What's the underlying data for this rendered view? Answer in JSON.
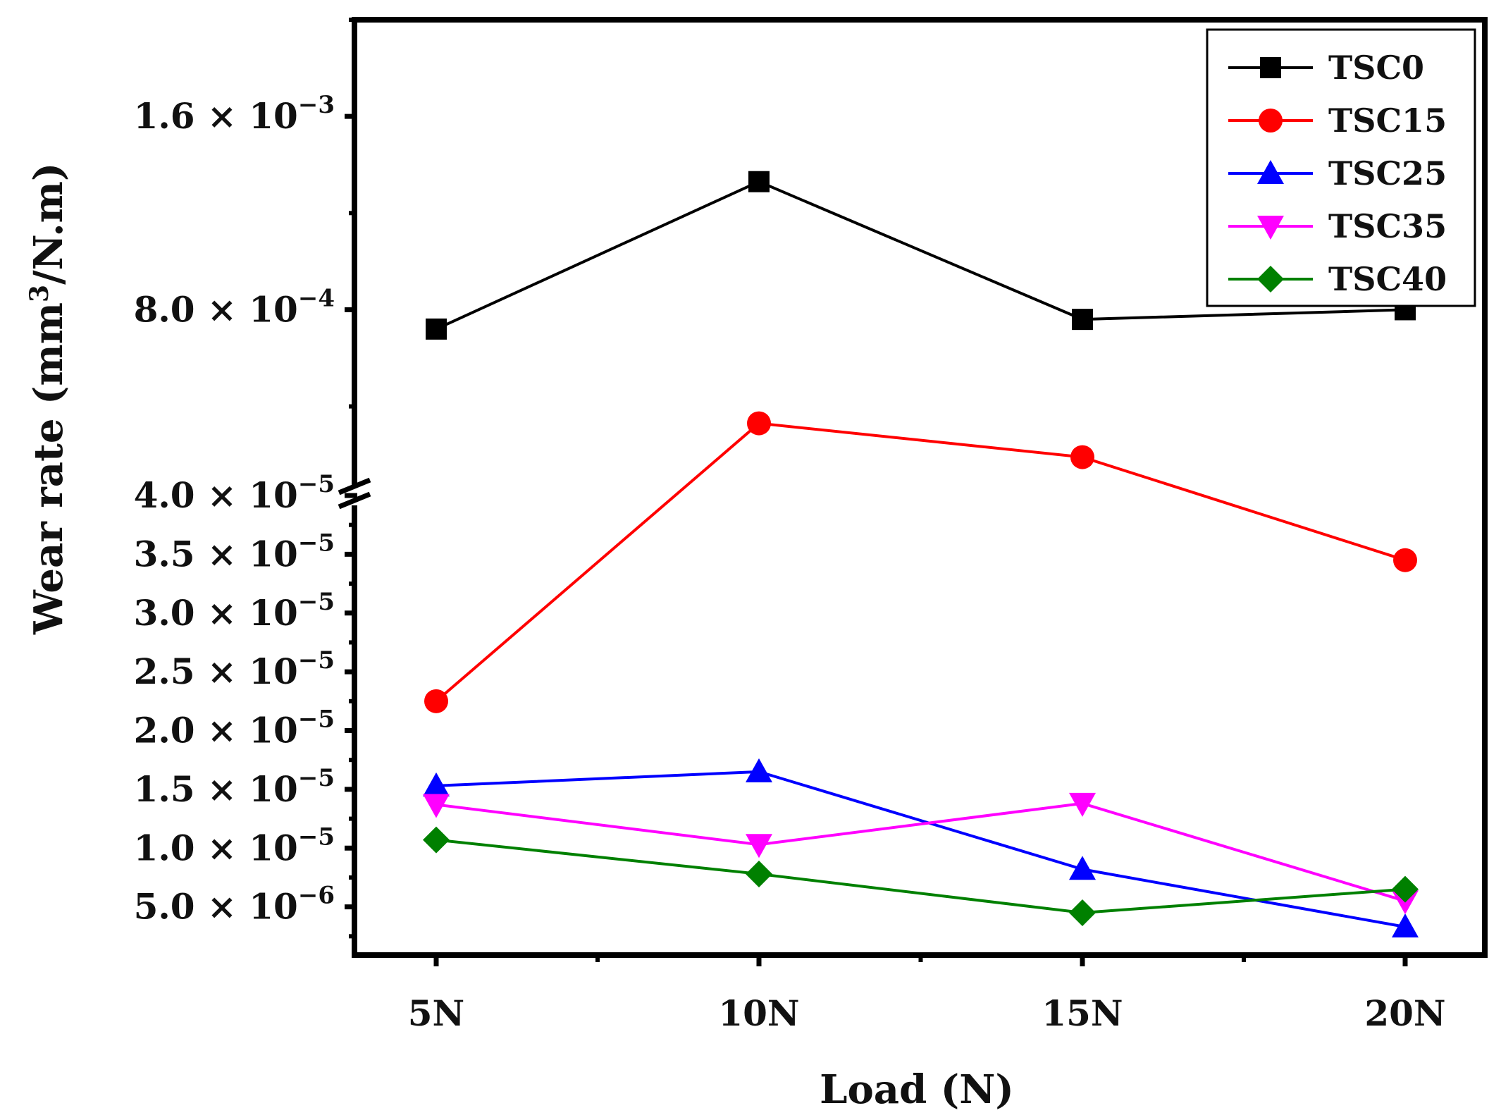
{
  "chart_data": {
    "type": "line",
    "title": "",
    "xlabel": "Load (N)",
    "ylabel_main": "Wear rate (mm",
    "ylabel_sup": "3",
    "ylabel_tail": "/N.m)",
    "categories": [
      "5N",
      "10N",
      "15N",
      "20N"
    ],
    "y_break": true,
    "y_lower_range": [
      1.5e-06,
      4e-05
    ],
    "y_upper_range": [
      4e-05,
      0.002
    ],
    "y_lower_ticks": [
      {
        "value": 5e-06,
        "mantissa": "5.0",
        "exp": "−6"
      },
      {
        "value": 1e-05,
        "mantissa": "1.0",
        "exp": "−5"
      },
      {
        "value": 1.5e-05,
        "mantissa": "1.5",
        "exp": "−5"
      },
      {
        "value": 2e-05,
        "mantissa": "2.0",
        "exp": "−5"
      },
      {
        "value": 2.5e-05,
        "mantissa": "2.5",
        "exp": "−5"
      },
      {
        "value": 3e-05,
        "mantissa": "3.0",
        "exp": "−5"
      },
      {
        "value": 3.5e-05,
        "mantissa": "3.5",
        "exp": "−5"
      },
      {
        "value": 4e-05,
        "mantissa": "4.0",
        "exp": "−5"
      }
    ],
    "y_upper_ticks": [
      {
        "value": 0.0008,
        "mantissa": "8.0",
        "exp": "−4"
      },
      {
        "value": 0.0016,
        "mantissa": "1.6",
        "exp": "−3"
      }
    ],
    "series": [
      {
        "name": "TSC0",
        "color": "#000000",
        "marker": "square",
        "values": [
          0.00072,
          0.00133,
          0.00076,
          0.0008
        ]
      },
      {
        "name": "TSC15",
        "color": "#ff0000",
        "marker": "circle",
        "values": [
          2.25e-05,
          0.00033,
          0.00019,
          3.45e-05
        ]
      },
      {
        "name": "TSC25",
        "color": "#0000ff",
        "marker": "triangle-up",
        "values": [
          1.53e-05,
          1.65e-05,
          8.2e-06,
          3.3e-06
        ]
      },
      {
        "name": "TSC35",
        "color": "#ff00ff",
        "marker": "triangle-down",
        "values": [
          1.37e-05,
          1.03e-05,
          1.38e-05,
          5.5e-06
        ]
      },
      {
        "name": "TSC40",
        "color": "#008000",
        "marker": "diamond",
        "values": [
          1.07e-05,
          7.8e-06,
          4.5e-06,
          6.5e-06
        ]
      }
    ],
    "legend_position": "top-right",
    "grid": false
  }
}
